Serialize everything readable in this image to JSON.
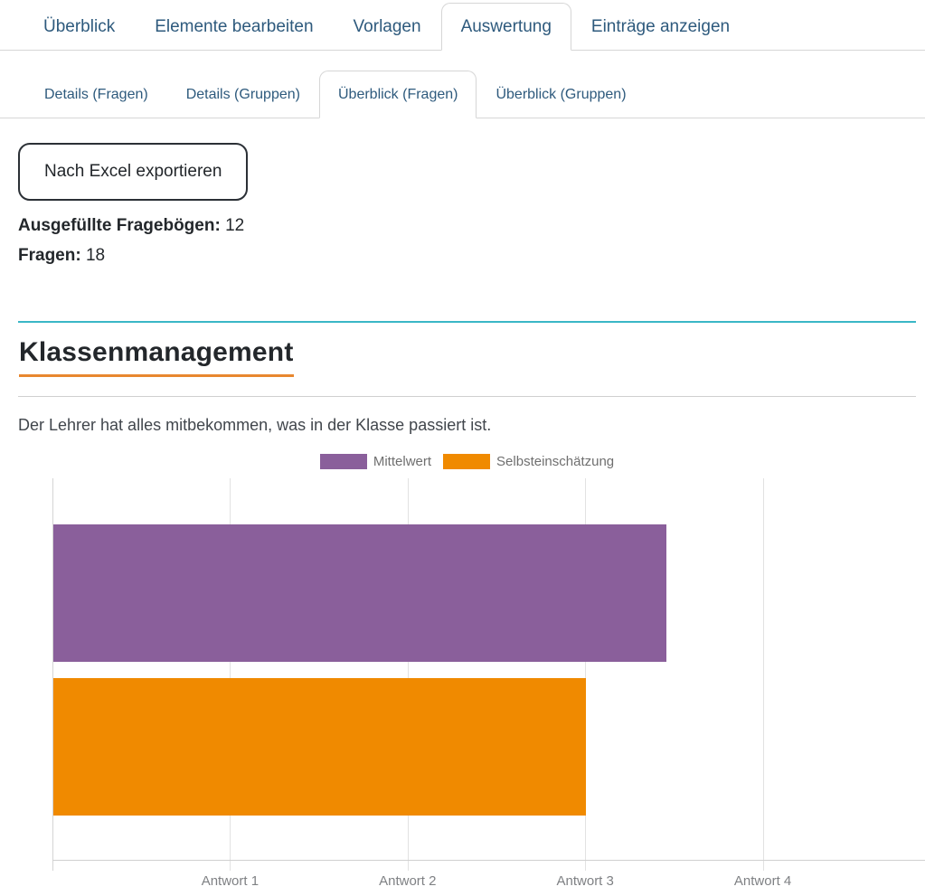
{
  "main_tabs": {
    "items": [
      {
        "label": "Überblick",
        "active": false
      },
      {
        "label": "Elemente bearbeiten",
        "active": false
      },
      {
        "label": "Vorlagen",
        "active": false
      },
      {
        "label": "Auswertung",
        "active": true
      },
      {
        "label": "Einträge anzeigen",
        "active": false
      }
    ]
  },
  "sub_tabs": {
    "items": [
      {
        "label": "Details (Fragen)",
        "active": false
      },
      {
        "label": "Details (Gruppen)",
        "active": false
      },
      {
        "label": "Überblick (Fragen)",
        "active": true
      },
      {
        "label": "Überblick (Gruppen)",
        "active": false
      }
    ]
  },
  "toolbar": {
    "export_label": "Nach Excel exportieren"
  },
  "stats": {
    "completed": {
      "label": "Ausgefüllte Fragebögen:",
      "value": "12"
    },
    "questions": {
      "label": "Fragen:",
      "value": "18"
    }
  },
  "section": {
    "title": "Klassenmanagement",
    "description": "Der Lehrer hat alles mitbekommen, was in der Klasse passiert ist."
  },
  "colors": {
    "tab_blue": "#2e5a7d",
    "teal_rule": "#3ab7c6",
    "title_underline_orange": "#e8872f",
    "mittelwert_purple": "#8a5f9b",
    "selbsteinschaetzung_orange": "#f08a00"
  },
  "chart_data": {
    "type": "bar",
    "orientation": "horizontal",
    "title": "",
    "xlabel": "",
    "ylabel": "",
    "categories": [
      "Antwort 1",
      "Antwort 2",
      "Antwort 3",
      "Antwort 4"
    ],
    "xlim": [
      0,
      5
    ],
    "grid": true,
    "legend_position": "top",
    "series": [
      {
        "name": "Mittelwert",
        "value": 3.45,
        "color": "#8a5f9b"
      },
      {
        "name": "Selbsteinschätzung",
        "value": 3.0,
        "color": "#f08a00"
      }
    ]
  }
}
